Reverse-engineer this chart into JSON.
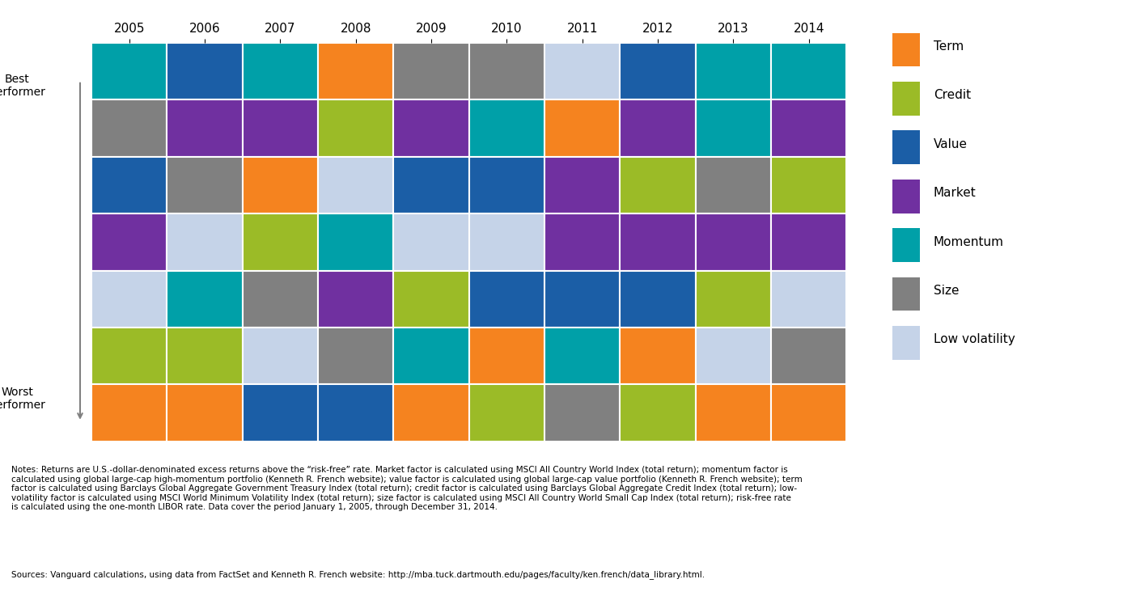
{
  "years": [
    "2005",
    "2006",
    "2007",
    "2008",
    "2009",
    "2010",
    "2011",
    "2012",
    "2013",
    "2014"
  ],
  "colors": {
    "Term": "#F5831F",
    "Credit": "#9BBB27",
    "Value": "#1B5EA6",
    "Market": "#7030A0",
    "Momentum": "#00A0A8",
    "Size": "#808080",
    "Low volatility": "#C5D3E8"
  },
  "grid": [
    [
      "Momentum",
      "Value",
      "Momentum",
      "Term",
      "Size",
      "Size",
      "Low volatility",
      "Value",
      "Momentum",
      "Momentum"
    ],
    [
      "Size",
      "Market",
      "Market",
      "Credit",
      "Market",
      "Momentum",
      "Term",
      "Market",
      "Momentum",
      "Market"
    ],
    [
      "Value",
      "Size",
      "Term",
      "Low volatility",
      "Value",
      "Value",
      "Market",
      "Credit",
      "Size",
      "Credit"
    ],
    [
      "Market",
      "Low volatility",
      "Credit",
      "Momentum",
      "Low volatility",
      "Low volatility",
      "Market",
      "Market",
      "Market",
      "Market"
    ],
    [
      "Low volatility",
      "Momentum",
      "Size",
      "Market",
      "Credit",
      "Value",
      "Value",
      "Value",
      "Credit",
      "Low volatility"
    ],
    [
      "Credit",
      "Credit",
      "Low volatility",
      "Size",
      "Momentum",
      "Term",
      "Momentum",
      "Term",
      "Low volatility",
      "Size"
    ],
    [
      "Term",
      "Term",
      "Value",
      "Value",
      "Term",
      "Credit",
      "Size",
      "Credit",
      "Term",
      "Term"
    ]
  ],
  "notes": "Notes: Returns are U.S.-dollar-denominated excess returns above the “risk-free” rate. Market factor is calculated using MSCI All Country World Index (total return); momentum factor is\ncalculated using global large-cap high-momentum portfolio (Kenneth R. French website); value factor is calculated using global large-cap value portfolio (Kenneth R. French website); term\nfactor is calculated using Barclays Global Aggregate Government Treasury Index (total return); credit factor is calculated using Barclays Global Aggregate Credit Index (total return); low-\nvolatility factor is calculated using MSCI World Minimum Volatility Index (total return); size factor is calculated using MSCI All Country World Small Cap Index (total return); risk-free rate\nis calculated using the one-month LIBOR rate. Data cover the period January 1, 2005, through December 31, 2014.",
  "sources": "Sources: Vanguard calculations, using data from FactSet and Kenneth R. French website: http://mba.tuck.dartmouth.edu/pages/faculty/ken.french/data_library.html."
}
